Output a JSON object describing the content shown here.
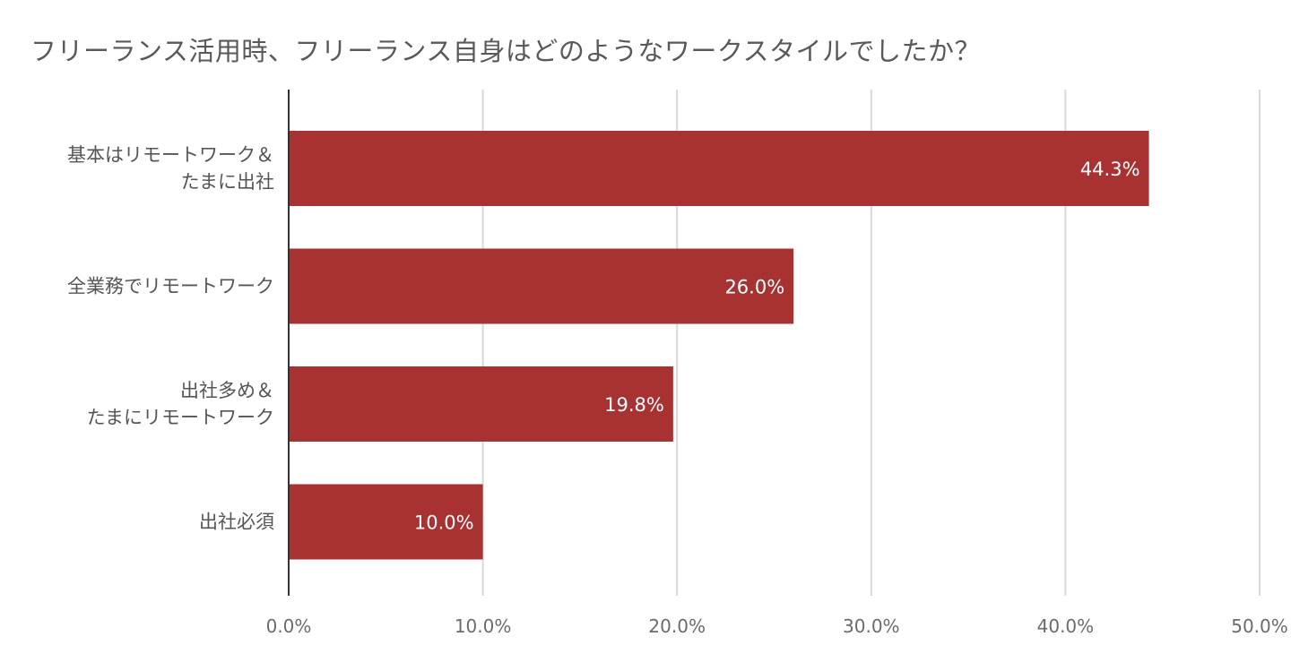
{
  "chart_data": {
    "type": "bar",
    "orientation": "horizontal",
    "title": "フリーランス活用時、フリーランス自身はどのようなワークスタイルでしたか？",
    "categories": [
      [
        "基本はリモートワーク＆",
        "たまに出社"
      ],
      [
        "全業務でリモートワーク"
      ],
      [
        "出社多め＆",
        "たまにリモートワーク"
      ],
      [
        "出社必須"
      ]
    ],
    "values": [
      44.3,
      26.0,
      19.8,
      10.0
    ],
    "data_labels": [
      "44.3%",
      "26.0%",
      "19.8%",
      "10.0%"
    ],
    "xlim": [
      0,
      50
    ],
    "xticks": [
      0,
      10,
      20,
      30,
      40,
      50
    ],
    "xtick_labels": [
      "0.0%",
      "10.0%",
      "20.0%",
      "30.0%",
      "40.0%",
      "50.0%"
    ],
    "xlabel": "",
    "ylabel": "",
    "grid": true,
    "legend": "none",
    "bar_color": "#a83232"
  }
}
